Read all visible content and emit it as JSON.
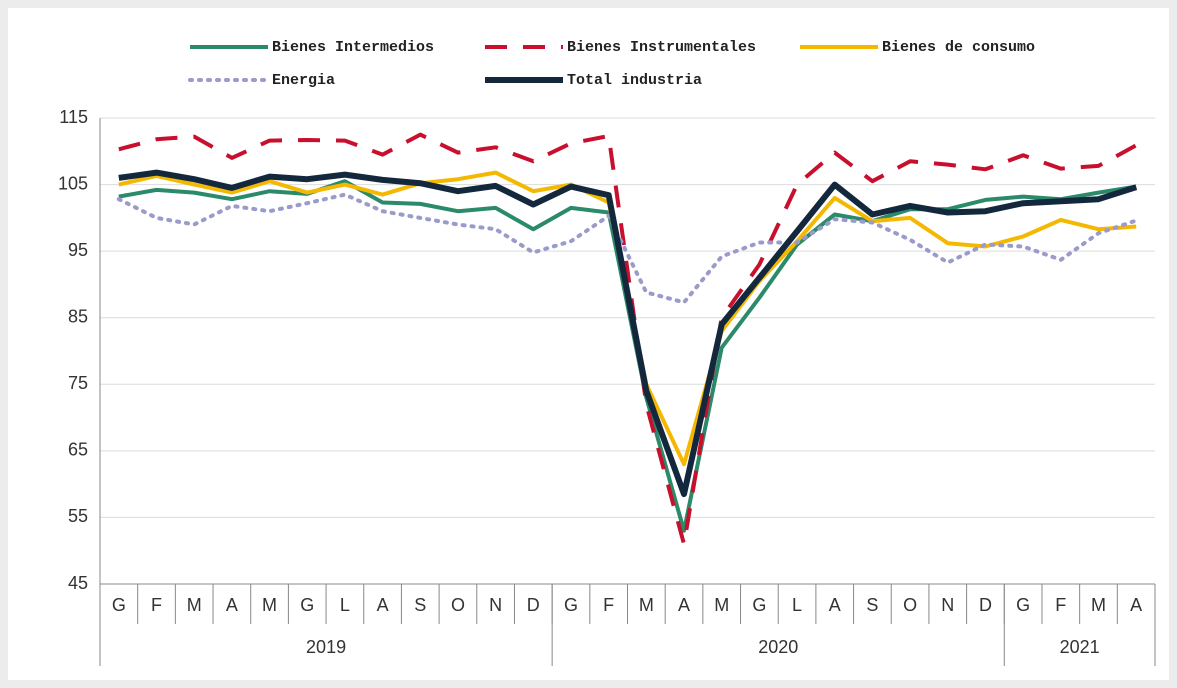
{
  "chart_data": {
    "type": "line",
    "categories": [
      "G",
      "F",
      "M",
      "A",
      "M",
      "G",
      "L",
      "A",
      "S",
      "O",
      "N",
      "D",
      "G",
      "F",
      "M",
      "A",
      "M",
      "G",
      "L",
      "A",
      "S",
      "O",
      "N",
      "D",
      "G",
      "F",
      "M",
      "A"
    ],
    "year_groups": [
      {
        "label": "2019",
        "count": 12
      },
      {
        "label": "2020",
        "count": 12
      },
      {
        "label": "2021",
        "count": 4
      }
    ],
    "ylim": [
      45,
      115
    ],
    "yticks": [
      45,
      55,
      65,
      75,
      85,
      95,
      105,
      115
    ],
    "grid": true,
    "series": [
      {
        "name": "Bienes Intermedios",
        "color": "#2a8a6a",
        "dash": "solid",
        "values": [
          103.2,
          104.2,
          103.8,
          102.8,
          104,
          103.6,
          105.5,
          102.3,
          102.1,
          101,
          101.5,
          98.3,
          101.5,
          100.8,
          73,
          53,
          80.5,
          88,
          96,
          100.5,
          99.5,
          101.3,
          101.3,
          102.7,
          103.2,
          102.8,
          103.8,
          104.7
        ]
      },
      {
        "name": "Bienes Instrumentales",
        "color": "#c8102e",
        "dash": "dashed",
        "values": [
          110.3,
          111.8,
          112.2,
          109,
          111.6,
          111.7,
          111.6,
          109.5,
          112.5,
          109.8,
          110.6,
          108.5,
          111.2,
          112.3,
          72,
          51,
          85,
          93,
          105,
          109.8,
          105.5,
          108.5,
          108,
          107.3,
          109.4,
          107.4,
          107.8,
          110.9
        ]
      },
      {
        "name": "Bienes de consumo",
        "color": "#f5b800",
        "dash": "solid",
        "values": [
          105,
          106.3,
          105,
          103.8,
          105.5,
          103.8,
          105,
          103.5,
          105.2,
          105.8,
          106.8,
          104,
          105,
          102.3,
          75,
          63,
          83,
          90.5,
          96.5,
          103,
          99.5,
          100,
          96.2,
          95.7,
          97.2,
          99.7,
          98.3,
          98.7
        ]
      },
      {
        "name": "Energia",
        "color": "#9a9acb",
        "dash": "dotted",
        "values": [
          102.8,
          100,
          99,
          101.8,
          101,
          102.2,
          103.5,
          101,
          100,
          99,
          98.3,
          94.8,
          96.5,
          100.3,
          88.8,
          87.3,
          94.2,
          96.3,
          96.3,
          99.8,
          99.3,
          96.7,
          93.3,
          96,
          95.7,
          93.7,
          97.7,
          99.6
        ]
      },
      {
        "name": "Total industria",
        "color": "#14283d",
        "dash": "solid",
        "width": 6,
        "values": [
          106,
          106.8,
          105.8,
          104.5,
          106.2,
          105.8,
          106.5,
          105.7,
          105.2,
          104,
          104.8,
          102,
          104.7,
          103.4,
          74,
          58.5,
          84,
          91,
          98,
          105,
          100.5,
          101.8,
          100.8,
          101,
          102.2,
          102.5,
          102.8,
          104.6
        ]
      }
    ]
  }
}
